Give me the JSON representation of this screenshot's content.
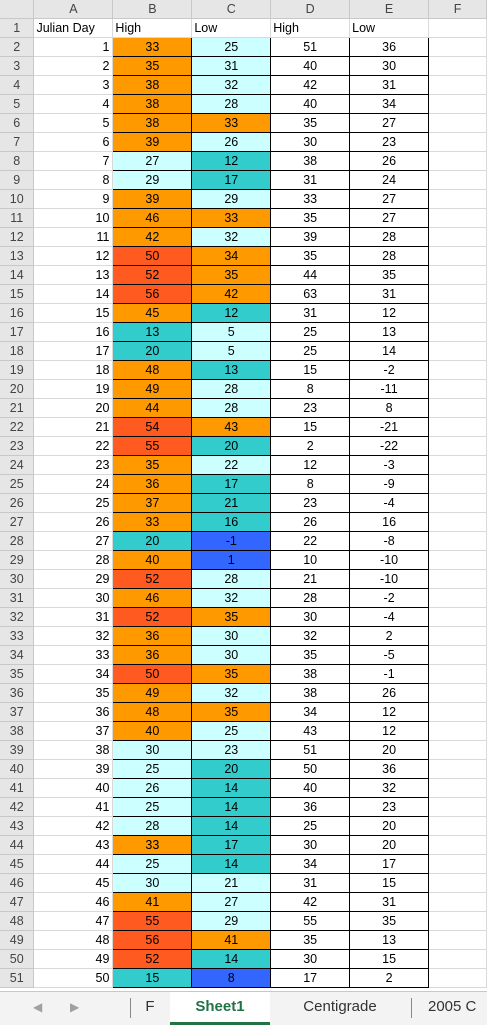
{
  "colors": {
    "red": "#ff5a1f",
    "orange": "#ff9900",
    "lightcyan": "#ccffff",
    "teal": "#33cccc",
    "blue": "#3366ff"
  },
  "columns": [
    "A",
    "B",
    "C",
    "D",
    "E",
    "F"
  ],
  "header_row": {
    "row": "1",
    "a": "Julian Day",
    "b": "High",
    "c": "Low",
    "d": "High",
    "e": "Low"
  },
  "rows": [
    {
      "r": "2",
      "a": "1",
      "b": "33",
      "bc": "orange",
      "c": "25",
      "cc": "lightcyan",
      "d": "51",
      "e": "36"
    },
    {
      "r": "3",
      "a": "2",
      "b": "35",
      "bc": "orange",
      "c": "31",
      "cc": "lightcyan",
      "d": "40",
      "e": "30"
    },
    {
      "r": "4",
      "a": "3",
      "b": "38",
      "bc": "orange",
      "c": "32",
      "cc": "lightcyan",
      "d": "42",
      "e": "31"
    },
    {
      "r": "5",
      "a": "4",
      "b": "38",
      "bc": "orange",
      "c": "28",
      "cc": "lightcyan",
      "d": "40",
      "e": "34"
    },
    {
      "r": "6",
      "a": "5",
      "b": "38",
      "bc": "orange",
      "c": "33",
      "cc": "orange",
      "d": "35",
      "e": "27"
    },
    {
      "r": "7",
      "a": "6",
      "b": "39",
      "bc": "orange",
      "c": "26",
      "cc": "lightcyan",
      "d": "30",
      "e": "23"
    },
    {
      "r": "8",
      "a": "7",
      "b": "27",
      "bc": "lightcyan",
      "c": "12",
      "cc": "teal",
      "d": "38",
      "e": "26"
    },
    {
      "r": "9",
      "a": "8",
      "b": "29",
      "bc": "lightcyan",
      "c": "17",
      "cc": "teal",
      "d": "31",
      "e": "24"
    },
    {
      "r": "10",
      "a": "9",
      "b": "39",
      "bc": "orange",
      "c": "29",
      "cc": "lightcyan",
      "d": "33",
      "e": "27"
    },
    {
      "r": "11",
      "a": "10",
      "b": "46",
      "bc": "orange",
      "c": "33",
      "cc": "orange",
      "d": "35",
      "e": "27"
    },
    {
      "r": "12",
      "a": "11",
      "b": "42",
      "bc": "orange",
      "c": "32",
      "cc": "lightcyan",
      "d": "39",
      "e": "28"
    },
    {
      "r": "13",
      "a": "12",
      "b": "50",
      "bc": "red",
      "c": "34",
      "cc": "orange",
      "d": "35",
      "e": "28"
    },
    {
      "r": "14",
      "a": "13",
      "b": "52",
      "bc": "red",
      "c": "35",
      "cc": "orange",
      "d": "44",
      "e": "35"
    },
    {
      "r": "15",
      "a": "14",
      "b": "56",
      "bc": "red",
      "c": "42",
      "cc": "orange",
      "d": "63",
      "e": "31"
    },
    {
      "r": "16",
      "a": "15",
      "b": "45",
      "bc": "orange",
      "c": "12",
      "cc": "teal",
      "d": "31",
      "e": "12"
    },
    {
      "r": "17",
      "a": "16",
      "b": "13",
      "bc": "teal",
      "c": "5",
      "cc": "lightcyan",
      "d": "25",
      "e": "13"
    },
    {
      "r": "18",
      "a": "17",
      "b": "20",
      "bc": "teal",
      "c": "5",
      "cc": "lightcyan",
      "d": "25",
      "e": "14"
    },
    {
      "r": "19",
      "a": "18",
      "b": "48",
      "bc": "orange",
      "c": "13",
      "cc": "teal",
      "d": "15",
      "e": "-2"
    },
    {
      "r": "20",
      "a": "19",
      "b": "49",
      "bc": "orange",
      "c": "28",
      "cc": "lightcyan",
      "d": "8",
      "e": "-11"
    },
    {
      "r": "21",
      "a": "20",
      "b": "44",
      "bc": "orange",
      "c": "28",
      "cc": "lightcyan",
      "d": "23",
      "e": "8"
    },
    {
      "r": "22",
      "a": "21",
      "b": "54",
      "bc": "red",
      "c": "43",
      "cc": "orange",
      "d": "15",
      "e": "-21"
    },
    {
      "r": "23",
      "a": "22",
      "b": "55",
      "bc": "red",
      "c": "20",
      "cc": "teal",
      "d": "2",
      "e": "-22"
    },
    {
      "r": "24",
      "a": "23",
      "b": "35",
      "bc": "orange",
      "c": "22",
      "cc": "lightcyan",
      "d": "12",
      "e": "-3"
    },
    {
      "r": "25",
      "a": "24",
      "b": "36",
      "bc": "orange",
      "c": "17",
      "cc": "teal",
      "d": "8",
      "e": "-9"
    },
    {
      "r": "26",
      "a": "25",
      "b": "37",
      "bc": "orange",
      "c": "21",
      "cc": "teal",
      "d": "23",
      "e": "-4"
    },
    {
      "r": "27",
      "a": "26",
      "b": "33",
      "bc": "orange",
      "c": "16",
      "cc": "teal",
      "d": "26",
      "e": "16"
    },
    {
      "r": "28",
      "a": "27",
      "b": "20",
      "bc": "teal",
      "c": "-1",
      "cc": "blue",
      "d": "22",
      "e": "-8"
    },
    {
      "r": "29",
      "a": "28",
      "b": "40",
      "bc": "orange",
      "c": "1",
      "cc": "blue",
      "d": "10",
      "e": "-10"
    },
    {
      "r": "30",
      "a": "29",
      "b": "52",
      "bc": "red",
      "c": "28",
      "cc": "lightcyan",
      "d": "21",
      "e": "-10"
    },
    {
      "r": "31",
      "a": "30",
      "b": "46",
      "bc": "orange",
      "c": "32",
      "cc": "lightcyan",
      "d": "28",
      "e": "-2"
    },
    {
      "r": "32",
      "a": "31",
      "b": "52",
      "bc": "red",
      "c": "35",
      "cc": "orange",
      "d": "30",
      "e": "-4"
    },
    {
      "r": "33",
      "a": "32",
      "b": "36",
      "bc": "orange",
      "c": "30",
      "cc": "lightcyan",
      "d": "32",
      "e": "2"
    },
    {
      "r": "34",
      "a": "33",
      "b": "36",
      "bc": "orange",
      "c": "30",
      "cc": "lightcyan",
      "d": "35",
      "e": "-5"
    },
    {
      "r": "35",
      "a": "34",
      "b": "50",
      "bc": "red",
      "c": "35",
      "cc": "orange",
      "d": "38",
      "e": "-1"
    },
    {
      "r": "36",
      "a": "35",
      "b": "49",
      "bc": "orange",
      "c": "32",
      "cc": "lightcyan",
      "d": "38",
      "e": "26"
    },
    {
      "r": "37",
      "a": "36",
      "b": "48",
      "bc": "orange",
      "c": "35",
      "cc": "orange",
      "d": "34",
      "e": "12"
    },
    {
      "r": "38",
      "a": "37",
      "b": "40",
      "bc": "orange",
      "c": "25",
      "cc": "lightcyan",
      "d": "43",
      "e": "12"
    },
    {
      "r": "39",
      "a": "38",
      "b": "30",
      "bc": "lightcyan",
      "c": "23",
      "cc": "lightcyan",
      "d": "51",
      "e": "20"
    },
    {
      "r": "40",
      "a": "39",
      "b": "25",
      "bc": "lightcyan",
      "c": "20",
      "cc": "teal",
      "d": "50",
      "e": "36"
    },
    {
      "r": "41",
      "a": "40",
      "b": "26",
      "bc": "lightcyan",
      "c": "14",
      "cc": "teal",
      "d": "40",
      "e": "32"
    },
    {
      "r": "42",
      "a": "41",
      "b": "25",
      "bc": "lightcyan",
      "c": "14",
      "cc": "teal",
      "d": "36",
      "e": "23"
    },
    {
      "r": "43",
      "a": "42",
      "b": "28",
      "bc": "lightcyan",
      "c": "14",
      "cc": "teal",
      "d": "25",
      "e": "20"
    },
    {
      "r": "44",
      "a": "43",
      "b": "33",
      "bc": "orange",
      "c": "17",
      "cc": "teal",
      "d": "30",
      "e": "20"
    },
    {
      "r": "45",
      "a": "44",
      "b": "25",
      "bc": "lightcyan",
      "c": "14",
      "cc": "teal",
      "d": "34",
      "e": "17"
    },
    {
      "r": "46",
      "a": "45",
      "b": "30",
      "bc": "lightcyan",
      "c": "21",
      "cc": "lightcyan",
      "d": "31",
      "e": "15"
    },
    {
      "r": "47",
      "a": "46",
      "b": "41",
      "bc": "orange",
      "c": "27",
      "cc": "lightcyan",
      "d": "42",
      "e": "31"
    },
    {
      "r": "48",
      "a": "47",
      "b": "55",
      "bc": "red",
      "c": "29",
      "cc": "lightcyan",
      "d": "55",
      "e": "35"
    },
    {
      "r": "49",
      "a": "48",
      "b": "56",
      "bc": "red",
      "c": "41",
      "cc": "orange",
      "d": "35",
      "e": "13"
    },
    {
      "r": "50",
      "a": "49",
      "b": "52",
      "bc": "red",
      "c": "14",
      "cc": "teal",
      "d": "30",
      "e": "15"
    },
    {
      "r": "51",
      "a": "50",
      "b": "15",
      "bc": "teal",
      "c": "8",
      "cc": "blue",
      "d": "17",
      "e": "2"
    }
  ],
  "tabs": {
    "prev_icon": "◀",
    "next_icon": "▶",
    "items": [
      {
        "label": "F",
        "active": false
      },
      {
        "label": "Sheet1",
        "active": true
      },
      {
        "label": "Centigrade",
        "active": false
      },
      {
        "label": "2005 C",
        "active": false
      }
    ]
  }
}
